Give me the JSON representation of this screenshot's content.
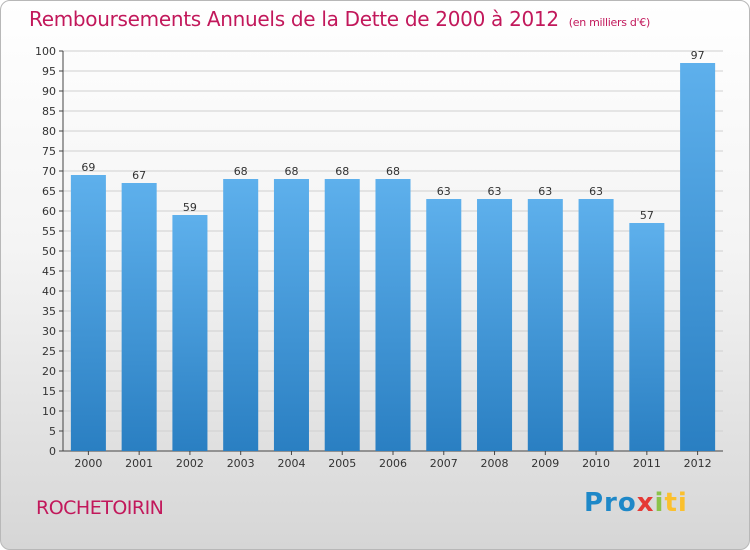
{
  "chart_data": {
    "type": "bar",
    "title": "Remboursements Annuels de la Dette de 2000 à 2012",
    "subtitle": "(en milliers d'€)",
    "categories": [
      "2000",
      "2001",
      "2002",
      "2003",
      "2004",
      "2005",
      "2006",
      "2007",
      "2008",
      "2009",
      "2010",
      "2011",
      "2012"
    ],
    "values": [
      69,
      67,
      59,
      68,
      68,
      68,
      68,
      63,
      63,
      63,
      63,
      57,
      97
    ],
    "ylim": [
      0,
      100
    ],
    "ytick_step": 5,
    "grid": true,
    "bar_color": "#4a9fe0",
    "title_color": "#c2185b"
  },
  "footer": {
    "commune": "ROCHETOIRIN",
    "logo": {
      "p1": "Pro",
      "p2": "x",
      "p3": "i",
      "p4": "ti"
    }
  }
}
